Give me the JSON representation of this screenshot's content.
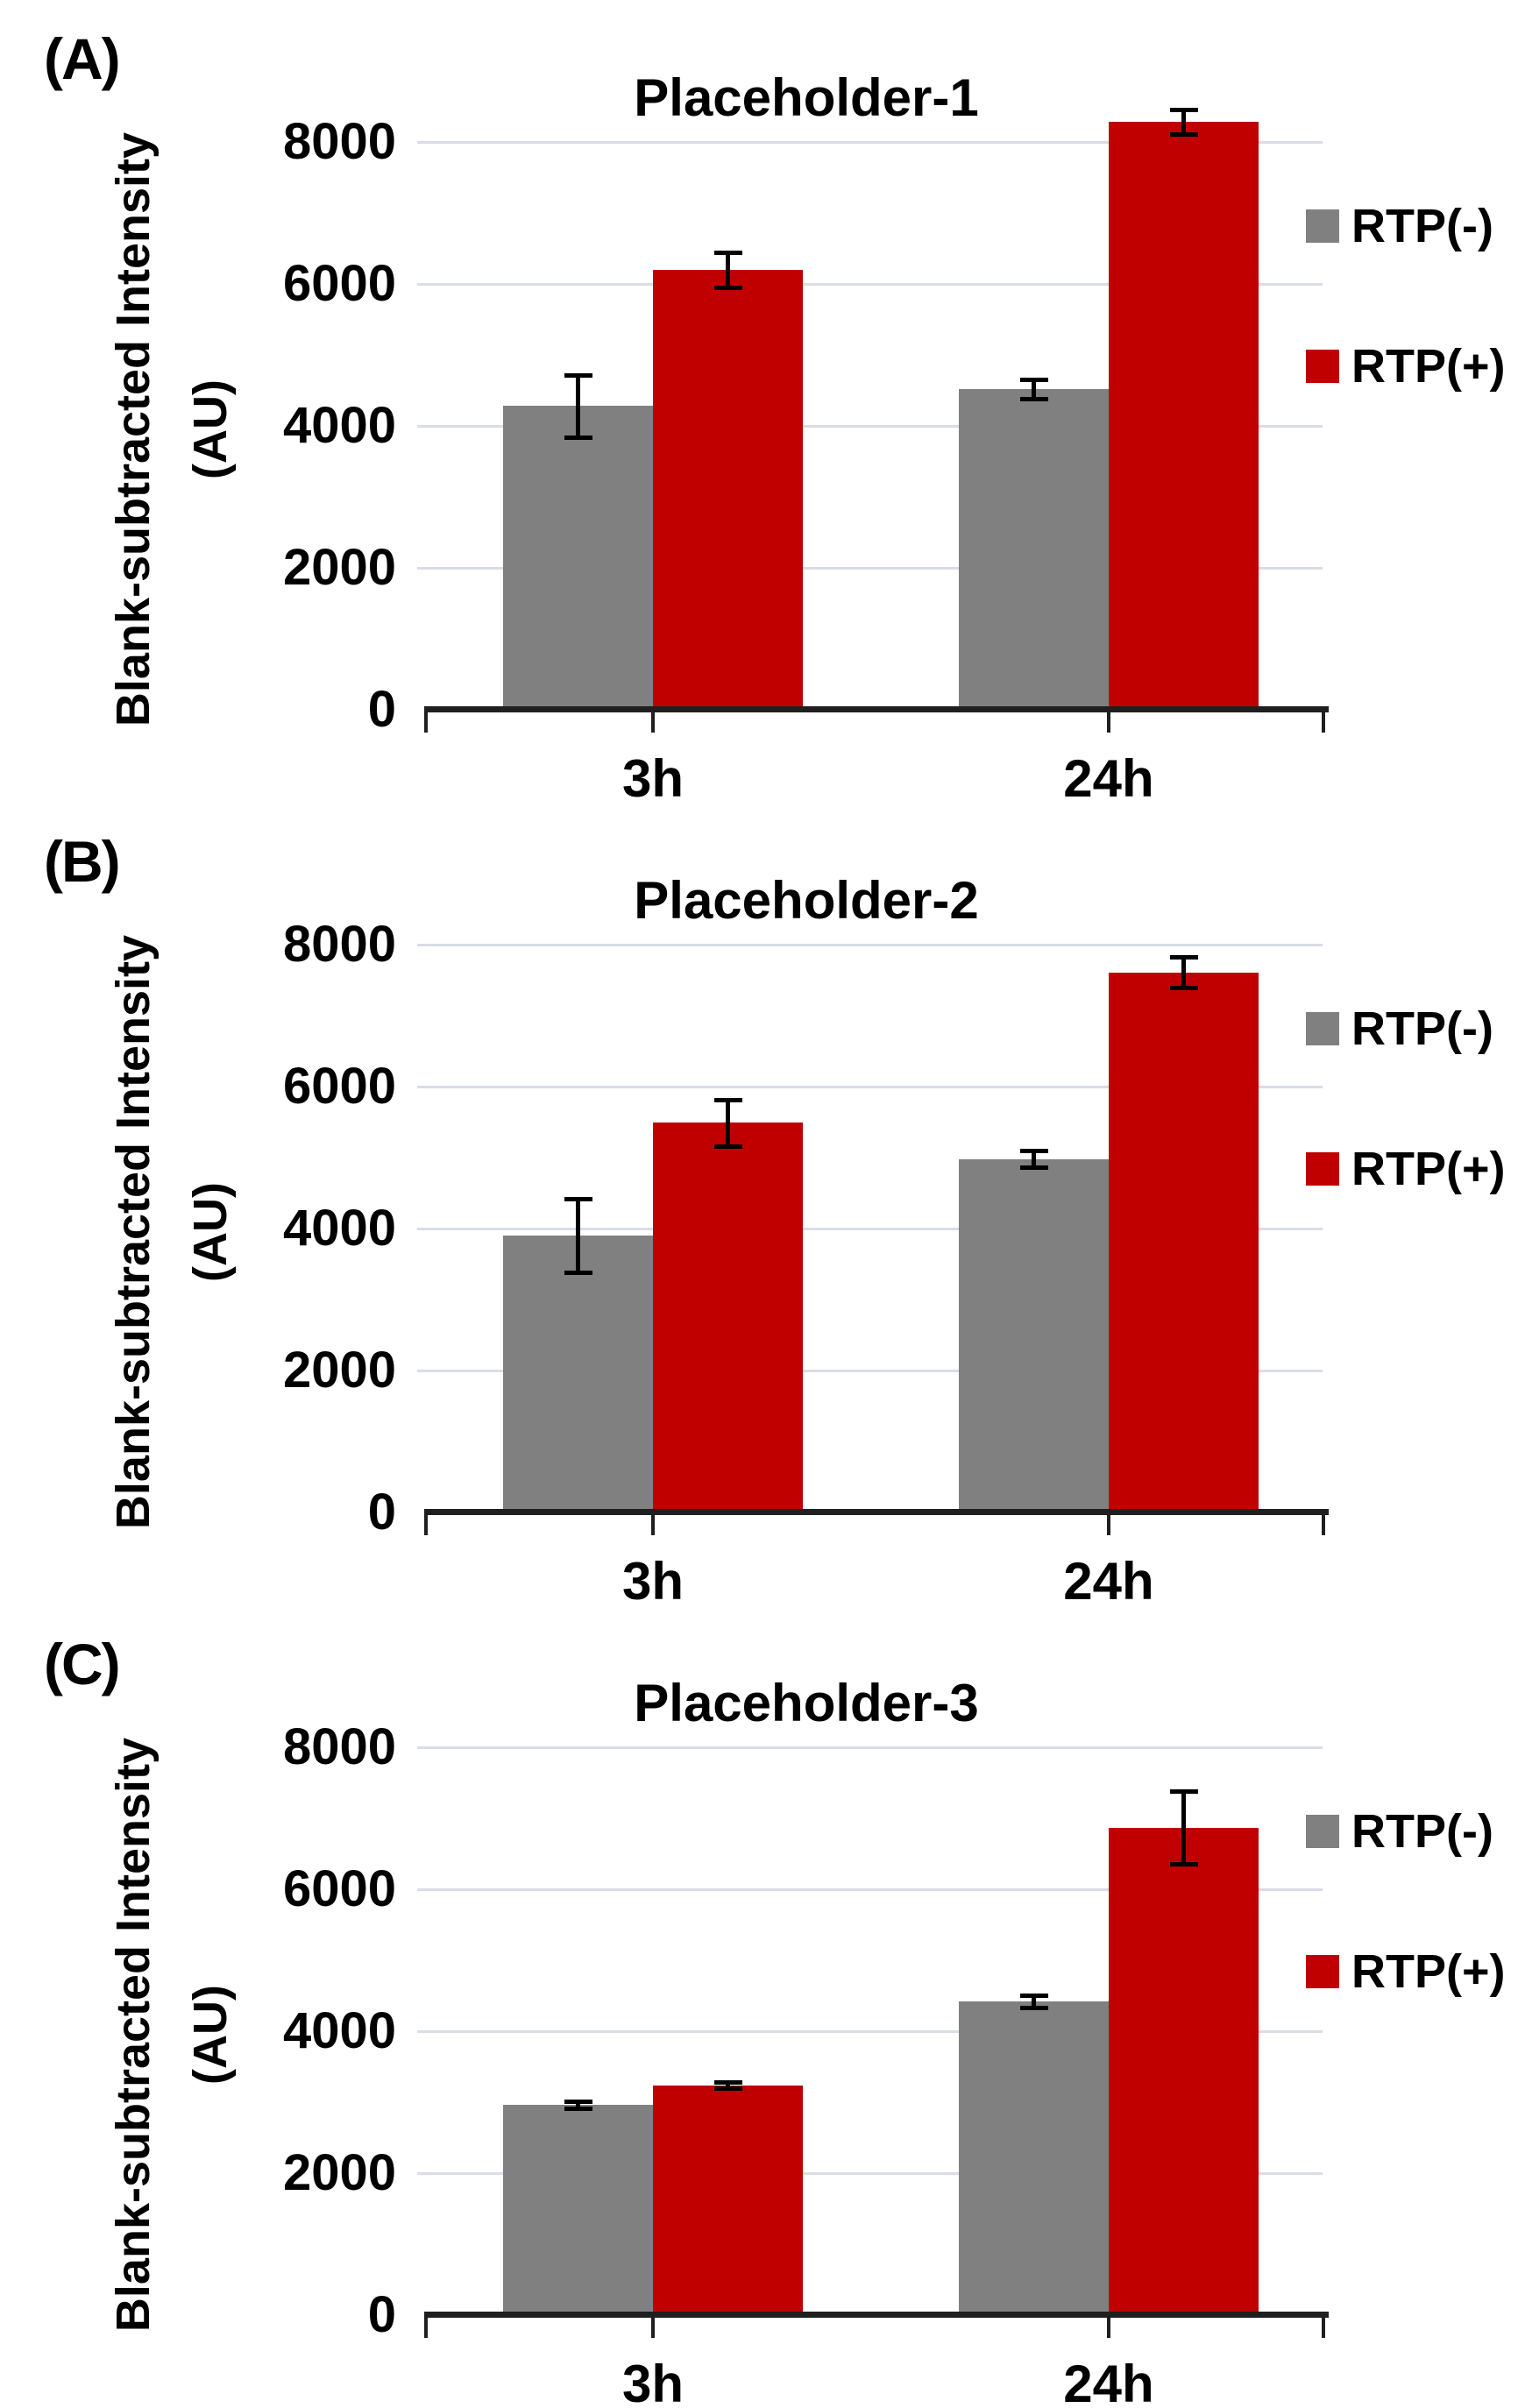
{
  "figure": {
    "y_axis_label_line1": "Blank-subtracted Intensity",
    "y_axis_label_line2": "(AU)"
  },
  "legend": {
    "items": [
      {
        "label": "RTP(-)",
        "color": "#808080"
      },
      {
        "label": "RTP(+)",
        "color": "#c00000"
      }
    ],
    "position": "right"
  },
  "panels": [
    {
      "letter": "(A)",
      "title": "Placeholder-1"
    },
    {
      "letter": "(B)",
      "title": "Placeholder-2"
    },
    {
      "letter": "(C)",
      "title": "Placeholder-3"
    }
  ],
  "colors": {
    "rtp_minus": "#808080",
    "rtp_plus": "#c00000",
    "gridline": "#d9dde6",
    "axis": "#1f1f1f",
    "text": "#000000",
    "background": "#ffffff"
  },
  "chart_data": [
    {
      "type": "bar",
      "panel": "(A)",
      "title": "Placeholder-1",
      "categories": [
        "3h",
        "24h"
      ],
      "series": [
        {
          "name": "RTP(-)",
          "color": "#808080",
          "values": [
            4280,
            4520
          ],
          "errors": [
            440,
            140
          ]
        },
        {
          "name": "RTP(+)",
          "color": "#c00000",
          "values": [
            6200,
            8280
          ],
          "errors": [
            250,
            175
          ]
        }
      ],
      "ylabel": "Blank-subtracted Intensity (AU)",
      "xlabel": "",
      "yticks": [
        0,
        2000,
        4000,
        6000,
        8000
      ],
      "ylim": [
        0,
        8000
      ],
      "grid": true,
      "error_bars": true,
      "legend_position": "right"
    },
    {
      "type": "bar",
      "panel": "(B)",
      "title": "Placeholder-2",
      "categories": [
        "3h",
        "24h"
      ],
      "series": [
        {
          "name": "RTP(-)",
          "color": "#808080",
          "values": [
            3900,
            4980
          ],
          "errors": [
            520,
            115
          ]
        },
        {
          "name": "RTP(+)",
          "color": "#c00000",
          "values": [
            5490,
            7610
          ],
          "errors": [
            330,
            220
          ]
        }
      ],
      "ylabel": "Blank-subtracted Intensity (AU)",
      "xlabel": "",
      "yticks": [
        0,
        2000,
        4000,
        6000,
        8000
      ],
      "ylim": [
        0,
        8000
      ],
      "grid": true,
      "error_bars": true,
      "legend_position": "right"
    },
    {
      "type": "bar",
      "panel": "(C)",
      "title": "Placeholder-3",
      "categories": [
        "3h",
        "24h"
      ],
      "series": [
        {
          "name": "RTP(-)",
          "color": "#808080",
          "values": [
            2960,
            4415
          ],
          "errors": [
            50,
            85
          ]
        },
        {
          "name": "RTP(+)",
          "color": "#c00000",
          "values": [
            3240,
            6870
          ],
          "errors": [
            40,
            510
          ]
        }
      ],
      "ylabel": "Blank-subtracted Intensity (AU)",
      "xlabel": "",
      "yticks": [
        0,
        2000,
        4000,
        6000,
        8000
      ],
      "ylim": [
        0,
        8000
      ],
      "grid": true,
      "error_bars": true,
      "legend_position": "right"
    }
  ]
}
